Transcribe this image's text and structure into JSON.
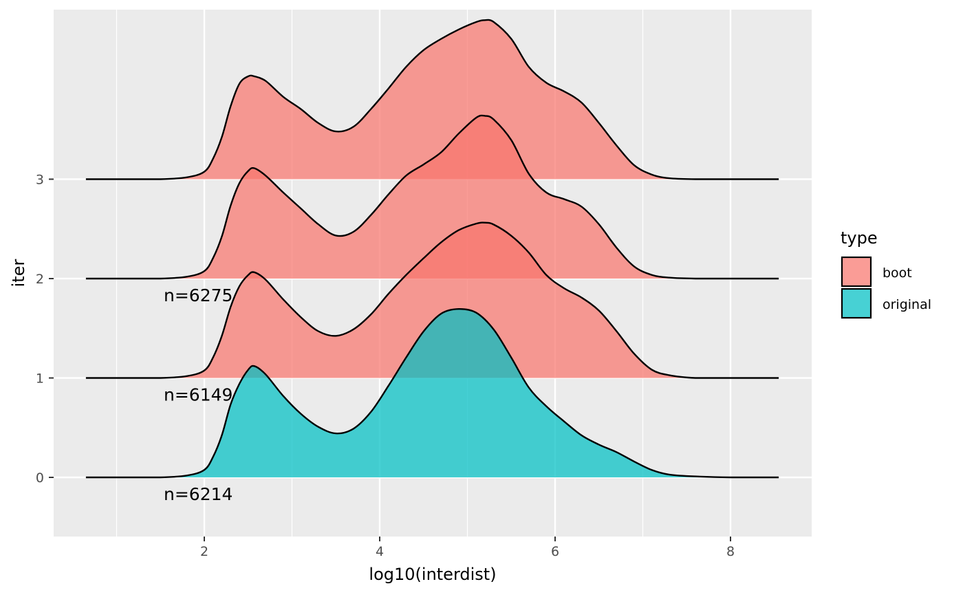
{
  "chart_data": {
    "type": "ridgeline",
    "xlabel": "log10(interdist)",
    "ylabel": "iter",
    "xlim": [
      0.65,
      8.55
    ],
    "x_ticks": [
      2,
      4,
      6,
      8
    ],
    "y_categories": [
      "0",
      "1",
      "2",
      "3"
    ],
    "grid": true,
    "legend": {
      "title": "type",
      "position": "right",
      "entries": [
        {
          "label": "boot",
          "color": "#F8766D"
        },
        {
          "label": "original",
          "color": "#00BFC4"
        }
      ]
    },
    "series": [
      {
        "iter": 0,
        "type": "original",
        "label": "n=6214",
        "x": [
          0.65,
          1.0,
          1.5,
          1.8,
          2.0,
          2.1,
          2.2,
          2.3,
          2.4,
          2.5,
          2.57,
          2.7,
          2.9,
          3.1,
          3.3,
          3.5,
          3.7,
          3.9,
          4.1,
          4.3,
          4.5,
          4.7,
          4.9,
          5.1,
          5.3,
          5.5,
          5.7,
          5.9,
          6.1,
          6.3,
          6.5,
          6.7,
          6.9,
          7.1,
          7.3,
          7.6,
          8.0,
          8.55
        ],
        "y": [
          0.0,
          0.0,
          0.0,
          0.02,
          0.08,
          0.22,
          0.45,
          0.78,
          1.0,
          1.15,
          1.19,
          1.1,
          0.87,
          0.68,
          0.54,
          0.47,
          0.52,
          0.7,
          0.98,
          1.28,
          1.56,
          1.75,
          1.8,
          1.76,
          1.58,
          1.28,
          0.96,
          0.76,
          0.6,
          0.45,
          0.35,
          0.27,
          0.17,
          0.08,
          0.03,
          0.01,
          0.0,
          0.0
        ]
      },
      {
        "iter": 1,
        "type": "boot",
        "label": "n=6149",
        "x": [
          0.65,
          1.0,
          1.5,
          1.8,
          2.0,
          2.1,
          2.2,
          2.3,
          2.4,
          2.5,
          2.57,
          2.7,
          2.9,
          3.1,
          3.3,
          3.5,
          3.7,
          3.9,
          4.1,
          4.3,
          4.5,
          4.7,
          4.9,
          5.1,
          5.2,
          5.3,
          5.5,
          5.7,
          5.9,
          6.1,
          6.3,
          6.5,
          6.7,
          6.9,
          7.1,
          7.3,
          7.6,
          8.0,
          8.55
        ],
        "y": [
          0.0,
          0.0,
          0.0,
          0.02,
          0.08,
          0.22,
          0.45,
          0.76,
          0.98,
          1.1,
          1.13,
          1.05,
          0.84,
          0.65,
          0.5,
          0.45,
          0.52,
          0.68,
          0.9,
          1.1,
          1.28,
          1.45,
          1.58,
          1.65,
          1.66,
          1.64,
          1.52,
          1.34,
          1.1,
          0.96,
          0.86,
          0.72,
          0.5,
          0.26,
          0.09,
          0.03,
          0.0,
          0.0,
          0.0
        ]
      },
      {
        "iter": 2,
        "type": "boot",
        "label": "n=6275",
        "x": [
          0.65,
          1.0,
          1.5,
          1.8,
          2.0,
          2.1,
          2.2,
          2.3,
          2.4,
          2.5,
          2.57,
          2.7,
          2.9,
          3.1,
          3.3,
          3.5,
          3.7,
          3.9,
          4.1,
          4.3,
          4.5,
          4.7,
          4.9,
          5.1,
          5.2,
          5.3,
          5.5,
          5.7,
          5.9,
          6.1,
          6.3,
          6.5,
          6.7,
          6.9,
          7.1,
          7.3,
          7.6,
          8.0,
          8.55
        ],
        "y": [
          0.0,
          0.0,
          0.0,
          0.02,
          0.08,
          0.22,
          0.45,
          0.78,
          1.02,
          1.15,
          1.18,
          1.1,
          0.92,
          0.75,
          0.58,
          0.46,
          0.5,
          0.68,
          0.9,
          1.1,
          1.22,
          1.35,
          1.55,
          1.72,
          1.74,
          1.7,
          1.48,
          1.12,
          0.92,
          0.85,
          0.77,
          0.58,
          0.33,
          0.13,
          0.04,
          0.01,
          0.0,
          0.0,
          0.0
        ]
      },
      {
        "iter": 3,
        "type": "boot",
        "label": "",
        "x": [
          0.65,
          1.0,
          1.5,
          1.8,
          2.0,
          2.1,
          2.2,
          2.3,
          2.4,
          2.5,
          2.57,
          2.7,
          2.9,
          3.1,
          3.3,
          3.5,
          3.7,
          3.9,
          4.1,
          4.3,
          4.5,
          4.7,
          4.9,
          5.1,
          5.2,
          5.3,
          5.5,
          5.7,
          5.9,
          6.1,
          6.3,
          6.5,
          6.7,
          6.9,
          7.1,
          7.3,
          7.6,
          8.0,
          8.55
        ],
        "y": [
          0.0,
          0.0,
          0.0,
          0.02,
          0.08,
          0.22,
          0.45,
          0.78,
          1.02,
          1.1,
          1.1,
          1.05,
          0.88,
          0.75,
          0.6,
          0.51,
          0.56,
          0.75,
          0.97,
          1.2,
          1.38,
          1.5,
          1.6,
          1.68,
          1.7,
          1.68,
          1.5,
          1.2,
          1.03,
          0.94,
          0.82,
          0.6,
          0.36,
          0.15,
          0.05,
          0.01,
          0.0,
          0.0,
          0.0
        ]
      }
    ]
  }
}
